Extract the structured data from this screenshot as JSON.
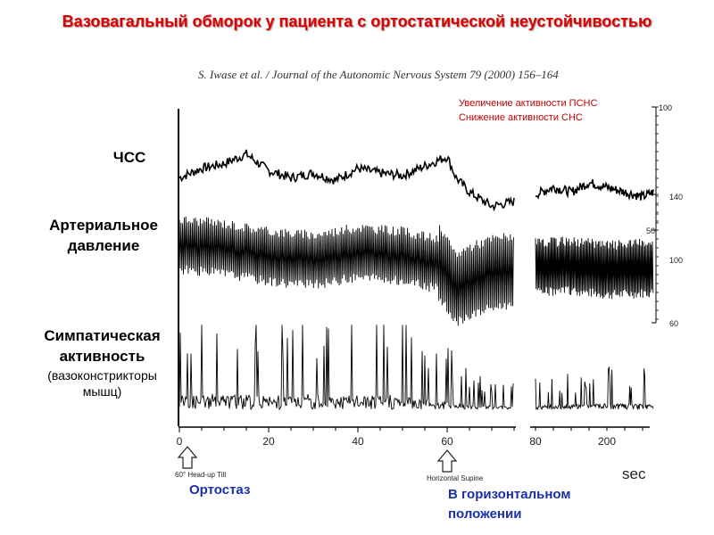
{
  "slide_title": "Вазовагальный обморок у пациента с ортостатической неустойчивостью",
  "citation": "S. Iwase et al. / Journal of the Autonomic Nervous System 79 (2000) 156–164",
  "annotation": {
    "line1": "Увеличение активности ПСНС",
    "line2": "Снижение активности СНС"
  },
  "row_labels": {
    "hr": "ЧСС",
    "bp_line1": "Артериальное",
    "bp_line2": "давление",
    "sna_line1": "Симпатическая",
    "sna_line2": "активность",
    "sna_sub1": "(вазоконстрикторы",
    "sna_sub2": "мышц)"
  },
  "markers": {
    "tilt_caption": "60° Head-up Tilt",
    "tilt_label": "Ортостаз",
    "supine_caption": "Horizontal Supine",
    "supine_label1": "В горизонтальном",
    "supine_label2": "положении"
  },
  "colors": {
    "title": "#e00000",
    "annotation": "#c00000",
    "blue_labels": "#1a2fa8",
    "trace": "#000000"
  },
  "chart_data": {
    "type": "line",
    "xlabel": "sec",
    "x_ticks": [
      "0",
      "20",
      "40",
      "60",
      "80",
      "200"
    ],
    "axis_break": "between 75 and ~180 sec",
    "right_axis_ticks": {
      "hr": [
        "100",
        "50"
      ],
      "bp": [
        "140",
        "100",
        "60"
      ]
    },
    "series": [
      {
        "name": "ЧСС",
        "segments": [
          {
            "x": [
              0,
              5,
              10,
              15,
              20,
              25,
              30,
              35,
              40,
              45,
              50,
              55,
              60,
              62,
              65,
              70,
              75
            ],
            "y": [
              72,
              76,
              78,
              82,
              75,
              72,
              74,
              71,
              76,
              74,
              73,
              77,
              81,
              72,
              66,
              60,
              62
            ]
          },
          {
            "x": [
              180,
              185,
              190,
              195,
              200,
              205,
              210,
              213
            ],
            "y": [
              65,
              68,
              66,
              70,
              68,
              66,
              64,
              66
            ]
          }
        ]
      },
      {
        "segments": [
          {
            "x": [
              0,
              10,
              20,
              30,
              40,
              50,
              58,
              62,
              65,
              70,
              75
            ],
            "y": [
              112,
              110,
              106,
              104,
              108,
              106,
              102,
              88,
              92,
              96,
              98
            ]
          },
          {
            "x": [
              180,
              190,
              200,
              213
            ],
            "y": [
              100,
              101,
              99,
              100
            ]
          }
        ]
      },
      {
        "segments": [
          {
            "x": [
              0,
              10,
              20,
              30,
              40,
              50,
              60,
              65,
              70,
              75
            ],
            "y": [
              30,
              32,
              28,
              31,
              30,
              29,
              18,
              10,
              8,
              7
            ]
          },
          {
            "x": [
              180,
              190,
              200,
              213
            ],
            "y": [
              9,
              10,
              12,
              11
            ]
          }
        ]
      }
    ]
  }
}
